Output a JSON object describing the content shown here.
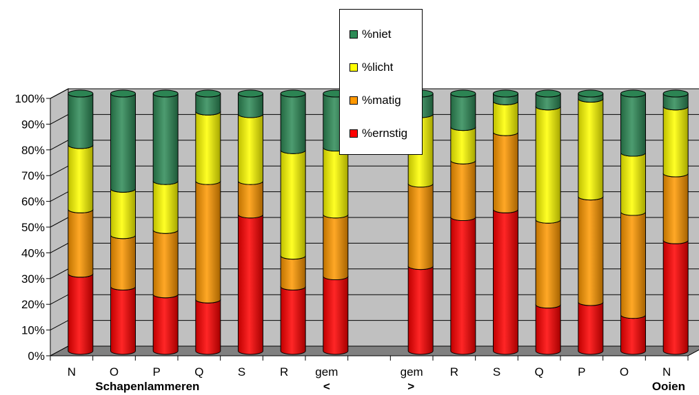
{
  "chart_data": {
    "type": "bar",
    "stacked": true,
    "style": "3d-cylinder",
    "categories": [
      "N",
      "O",
      "P",
      "Q",
      "S",
      "R",
      "gem",
      "",
      "gem",
      "R",
      "S",
      "Q",
      "P",
      "O",
      "N"
    ],
    "group_labels": [
      "Schapenlammeren",
      "<",
      ">",
      "Ooien"
    ],
    "ylim": [
      0,
      100
    ],
    "ytick_labels": [
      "0%",
      "10%",
      "20%",
      "30%",
      "40%",
      "50%",
      "60%",
      "70%",
      "80%",
      "90%",
      "100%"
    ],
    "series": [
      {
        "name": "%ernstig",
        "color": "#ff0000",
        "values": [
          30,
          25,
          22,
          20,
          53,
          25,
          29,
          null,
          33,
          52,
          55,
          18,
          19,
          14,
          43
        ]
      },
      {
        "name": "%matig",
        "color": "#ff9900",
        "values": [
          25,
          20,
          25,
          46,
          13,
          12,
          24,
          null,
          32,
          22,
          30,
          33,
          41,
          40,
          26
        ]
      },
      {
        "name": "%licht",
        "color": "#ffff00",
        "values": [
          25,
          18,
          19,
          27,
          26,
          41,
          26,
          null,
          27,
          13,
          12,
          44,
          38,
          23,
          26
        ]
      },
      {
        "name": "%niet",
        "color": "#2e8b57",
        "values": [
          20,
          37,
          34,
          7,
          8,
          22,
          21,
          null,
          8,
          13,
          3,
          5,
          2,
          23,
          5
        ]
      }
    ],
    "legend_position": "top-center",
    "grid": true,
    "colors": {
      "plot_wall": "#c0c0c0",
      "floor": "#808080"
    }
  }
}
